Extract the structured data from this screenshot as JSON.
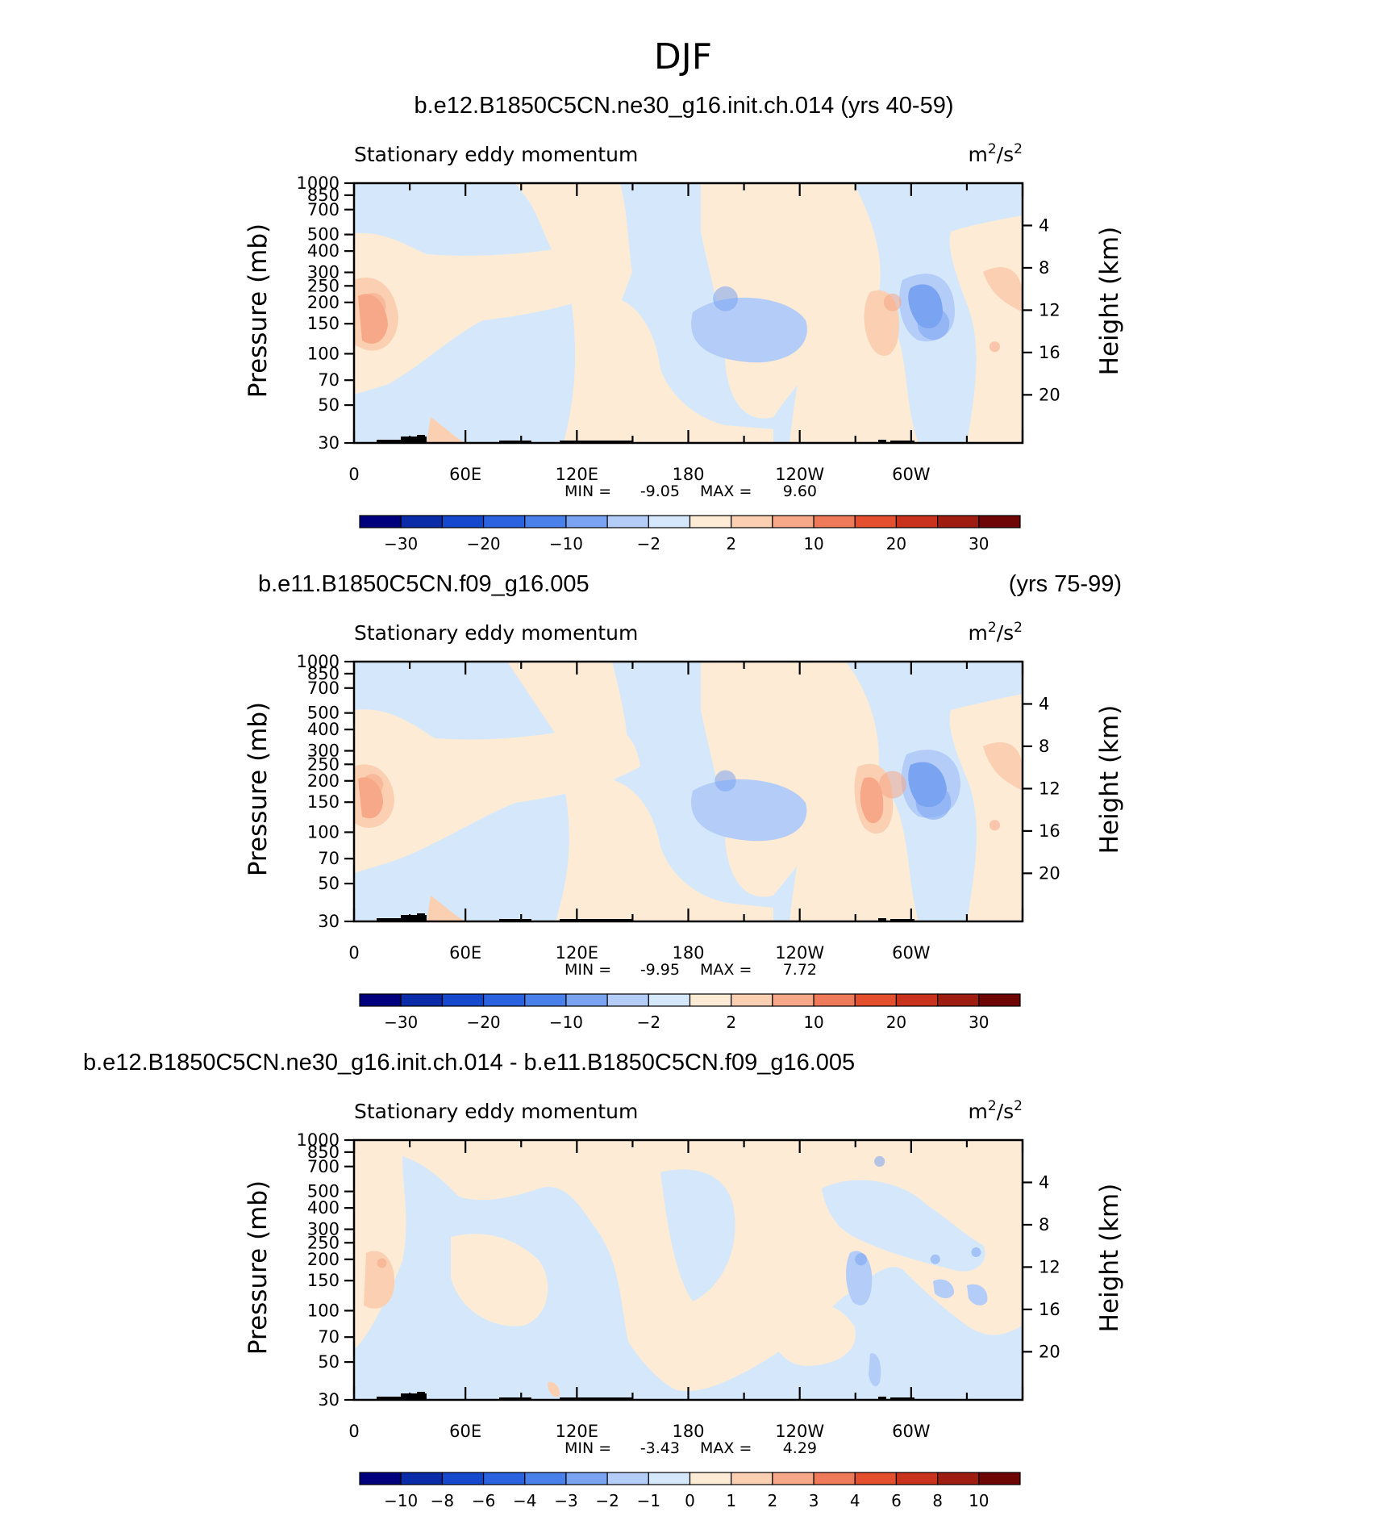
{
  "figure": {
    "title": "DJF"
  },
  "panels": [
    {
      "title_left": "b.e12.B1850C5CN.ne30_g16.init.ch.014 (yrs 40-59)",
      "title_right": "",
      "subtitle_left": "Stationary eddy momentum",
      "units_base": "m",
      "units_exp1": "2",
      "units_mid": "/s",
      "units_exp2": "2",
      "y_label_left": "Pressure (mb)",
      "y_label_right": "Height (km)",
      "stats": {
        "min_label": "MIN =",
        "min": "-9.05",
        "max_label": "MAX =",
        "max": "9.60"
      },
      "colorbar": {
        "colors": [
          "#00007f",
          "#0a2ca8",
          "#1548cc",
          "#2a62e0",
          "#4a80ea",
          "#7aa4f2",
          "#b4cdf8",
          "#d5e8fb",
          "#fdebd5",
          "#fbcfb2",
          "#f6a888",
          "#ef7a5a",
          "#e4502e",
          "#c9321c",
          "#9e1c10",
          "#6f0606"
        ],
        "labels": [
          "-30",
          "-20",
          "-10",
          "-2",
          "2",
          "10",
          "20",
          "30"
        ]
      },
      "chart_data": {
        "type": "heatmap",
        "x_ticks": [
          "0",
          "60E",
          "120E",
          "180",
          "120W",
          "60W"
        ],
        "y_ticks_left": [
          "30",
          "50",
          "70",
          "100",
          "150",
          "200",
          "250",
          "300",
          "400",
          "500",
          "700",
          "850",
          "1000"
        ],
        "y_ticks_right": [
          "20",
          "16",
          "12",
          "8",
          "4"
        ],
        "x_range": [
          0,
          360
        ],
        "p_range": [
          1000,
          30
        ],
        "features": [
          {
            "lon": 10,
            "p": 190,
            "value": 7.5
          },
          {
            "lon": 200,
            "p": 210,
            "value": -7
          },
          {
            "lon": 290,
            "p": 200,
            "value": 5
          },
          {
            "lon": 312,
            "p": 150,
            "value": -9.05
          },
          {
            "lon": 345,
            "p": 110,
            "value": 3
          }
        ]
      }
    },
    {
      "title_left": "b.e11.B1850C5CN.f09_g16.005",
      "title_right": "(yrs 75-99)",
      "subtitle_left": "Stationary eddy momentum",
      "units_base": "m",
      "units_exp1": "2",
      "units_mid": "/s",
      "units_exp2": "2",
      "y_label_left": "Pressure (mb)",
      "y_label_right": "Height (km)",
      "stats": {
        "min_label": "MIN =",
        "min": "-9.95",
        "max_label": "MAX =",
        "max": "7.72"
      },
      "colorbar": {
        "colors": [
          "#00007f",
          "#0a2ca8",
          "#1548cc",
          "#2a62e0",
          "#4a80ea",
          "#7aa4f2",
          "#b4cdf8",
          "#d5e8fb",
          "#fdebd5",
          "#fbcfb2",
          "#f6a888",
          "#ef7a5a",
          "#e4502e",
          "#c9321c",
          "#9e1c10",
          "#6f0606"
        ],
        "labels": [
          "-30",
          "-20",
          "-10",
          "-2",
          "2",
          "10",
          "20",
          "30"
        ]
      },
      "chart_data": {
        "type": "heatmap",
        "x_ticks": [
          "0",
          "60E",
          "120E",
          "180",
          "120W",
          "60W"
        ],
        "y_ticks_left": [
          "30",
          "50",
          "70",
          "100",
          "150",
          "200",
          "250",
          "300",
          "400",
          "500",
          "700",
          "850",
          "1000"
        ],
        "y_ticks_right": [
          "20",
          "16",
          "12",
          "8",
          "4"
        ],
        "x_range": [
          0,
          360
        ],
        "p_range": [
          1000,
          30
        ],
        "features": [
          {
            "lon": 10,
            "p": 190,
            "value": 6
          },
          {
            "lon": 200,
            "p": 200,
            "value": -6
          },
          {
            "lon": 290,
            "p": 190,
            "value": 7.72
          },
          {
            "lon": 312,
            "p": 150,
            "value": -9.95
          },
          {
            "lon": 345,
            "p": 110,
            "value": 3
          }
        ]
      }
    },
    {
      "title_left": "b.e12.B1850C5CN.ne30_g16.init.ch.014 - b.e11.B1850C5CN.f09_g16.005",
      "title_right": "",
      "subtitle_left": "Stationary eddy momentum",
      "units_base": "m",
      "units_exp1": "2",
      "units_mid": "/s",
      "units_exp2": "2",
      "y_label_left": "Pressure (mb)",
      "y_label_right": "Height (km)",
      "stats": {
        "min_label": "MIN =",
        "min": "-3.43",
        "max_label": "MAX =",
        "max": "4.29"
      },
      "colorbar": {
        "colors": [
          "#00007f",
          "#0a2ca8",
          "#1548cc",
          "#2a62e0",
          "#4a80ea",
          "#7aa4f2",
          "#b4cdf8",
          "#d5e8fb",
          "#fdebd5",
          "#fbcfb2",
          "#f6a888",
          "#ef7a5a",
          "#e4502e",
          "#c9321c",
          "#9e1c10",
          "#6f0606"
        ],
        "labels": [
          "-10",
          "-8",
          "-6",
          "-4",
          "-3",
          "-2",
          "-1",
          "0",
          "1",
          "2",
          "3",
          "4",
          "6",
          "8",
          "10"
        ]
      },
      "chart_data": {
        "type": "heatmap",
        "x_ticks": [
          "0",
          "60E",
          "120E",
          "180",
          "120W",
          "60W"
        ],
        "y_ticks_left": [
          "30",
          "50",
          "70",
          "100",
          "150",
          "200",
          "250",
          "300",
          "400",
          "500",
          "700",
          "850",
          "1000"
        ],
        "y_ticks_right": [
          "20",
          "16",
          "12",
          "8",
          "4"
        ],
        "x_range": [
          0,
          360
        ],
        "p_range": [
          1000,
          30
        ],
        "features": [
          {
            "lon": 15,
            "p": 190,
            "value": 2
          },
          {
            "lon": 273,
            "p": 200,
            "value": -3.43
          },
          {
            "lon": 283,
            "p": 750,
            "value": -3
          },
          {
            "lon": 313,
            "p": 200,
            "value": -2
          },
          {
            "lon": 335,
            "p": 220,
            "value": -2
          }
        ]
      }
    }
  ]
}
